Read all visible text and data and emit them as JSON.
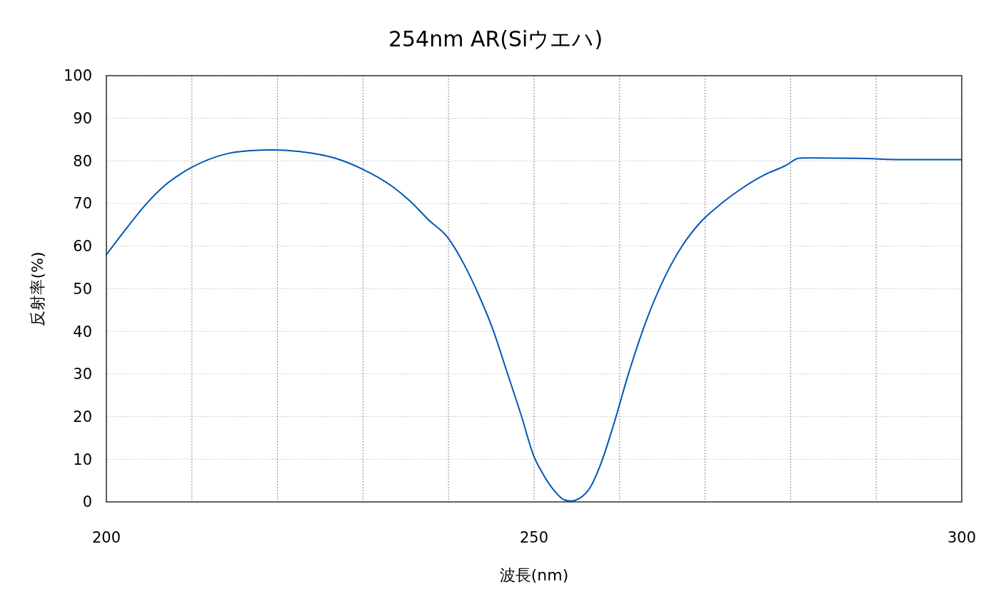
{
  "chart_data": {
    "type": "line",
    "title": "254nm AR(Siウエハ)",
    "xlabel": "波長(nm)",
    "ylabel": "反射率(%)",
    "xlim": [
      200,
      300
    ],
    "xticks": [
      200,
      {
        "value": 210,
        "label": null
      },
      {
        "value": 220,
        "label": null
      },
      {
        "value": 230,
        "label": null
      },
      {
        "value": 240,
        "label": null
      },
      250,
      {
        "value": 260,
        "label": null
      },
      {
        "value": 270,
        "label": null
      },
      {
        "value": 280,
        "label": null
      },
      {
        "value": 290,
        "label": null
      },
      300
    ],
    "ylim": [
      0,
      100
    ],
    "yticks": [
      0,
      10,
      20,
      30,
      40,
      50,
      60,
      70,
      80,
      90,
      100
    ],
    "grid": true,
    "marker": "none",
    "line_style": "solid",
    "series": [
      {
        "color": "#0057b8",
        "x": [
          200,
          202.2,
          204.7,
          206.8,
          209.9,
          213.9,
          216.8,
          219.3,
          222.6,
          226.8,
          230.1,
          233.5,
          235.6,
          237.6,
          240.0,
          241.8,
          243.5,
          245.2,
          246.8,
          248.5,
          250.0,
          251.0,
          252.3,
          253.5,
          254.3,
          255.3,
          256.6,
          257.8,
          259.3,
          261.0,
          263.1,
          265.2,
          267.3,
          269.4,
          271.9,
          274.4,
          276.9,
          279.4,
          280.9,
          281.5,
          287.7,
          294.0,
          300
        ],
        "values": [
          58.0,
          63.8,
          70.0,
          74.2,
          78.4,
          81.6,
          82.4,
          82.6,
          82.2,
          80.6,
          77.9,
          73.9,
          70.4,
          66.3,
          61.8,
          55.8,
          48.7,
          40.4,
          30.7,
          20.3,
          10.6,
          6.7,
          2.8,
          0.5,
          0.2,
          0.8,
          3.5,
          8.9,
          18.1,
          29.8,
          42.4,
          52.4,
          60.0,
          65.5,
          70.0,
          73.7,
          76.7,
          78.9,
          80.6,
          80.7,
          80.6,
          80.3,
          80.3
        ]
      }
    ]
  }
}
